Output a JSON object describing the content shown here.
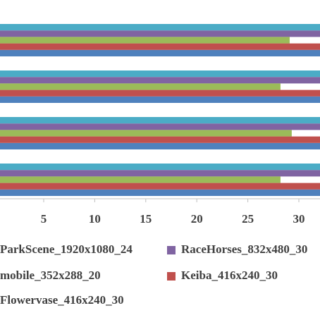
{
  "chart_data": {
    "type": "hbar",
    "categories": [
      null,
      null,
      null,
      null
    ],
    "series": [
      {
        "name": "ParkScene_1920x1080_24",
        "color": "#4f81bd",
        "values": [
          32.5,
          32.5,
          32.5,
          32.5
        ]
      },
      {
        "name": "RaceHorses_832x480_30",
        "color": "#8064a2",
        "values": [
          32.5,
          32.5,
          32.5,
          32.5
        ]
      },
      {
        "name": "mobile_352x288_20",
        "color": "#9bbb59",
        "values": [
          29.1,
          28.2,
          29.3,
          28.2
        ]
      },
      {
        "name": "Keiba_416x240_30",
        "color": "#c0504d",
        "values": [
          32.5,
          32.5,
          32.5,
          32.5
        ]
      },
      {
        "name": "Flowervase_416x240_30",
        "color": "#4bacc6",
        "values": [
          32.5,
          32.5,
          32.5,
          32.5
        ]
      }
    ],
    "xlim": [
      0.72,
      32.07
    ],
    "xticks": [
      5,
      10,
      15,
      20,
      25,
      30
    ]
  }
}
